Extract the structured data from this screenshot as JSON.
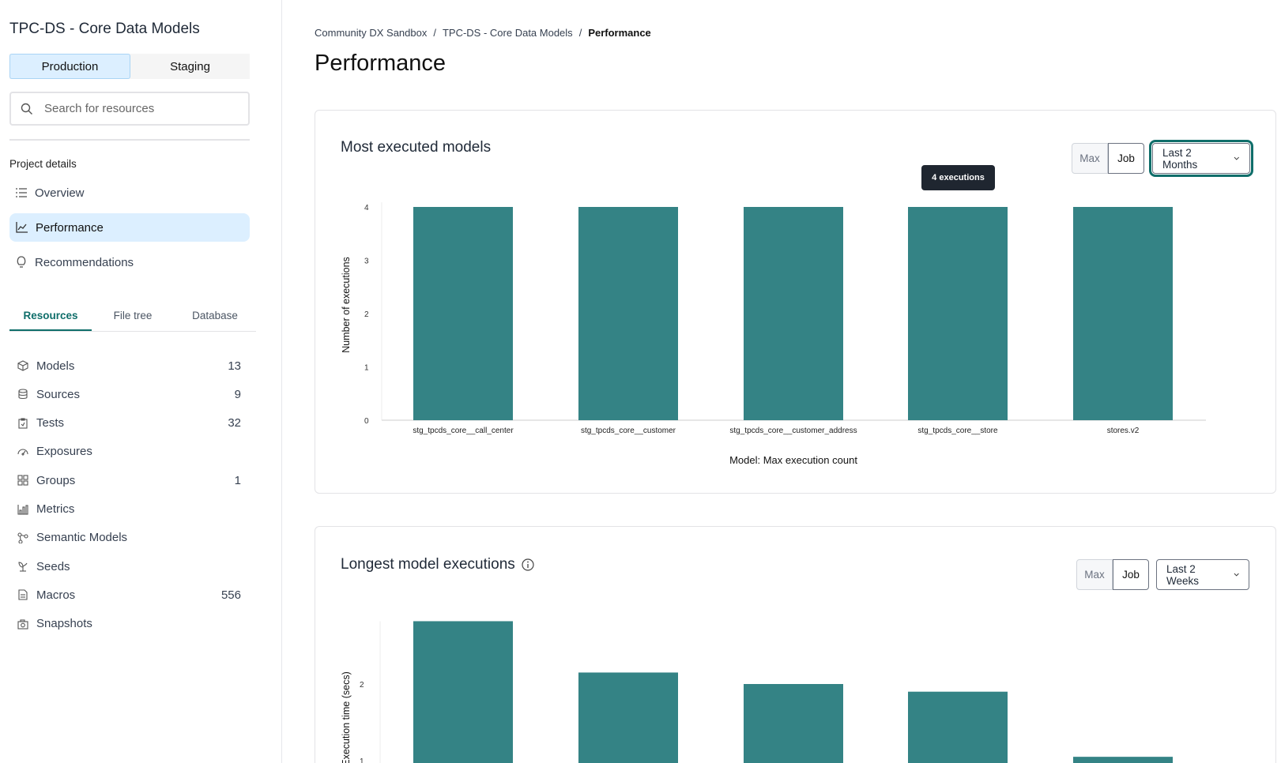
{
  "sidebar": {
    "project_title": "TPC-DS - Core Data Models",
    "env": {
      "production": "Production",
      "staging": "Staging"
    },
    "search_placeholder": "Search for resources",
    "section": "Project details",
    "nav": [
      {
        "label": "Overview",
        "icon": "list-icon"
      },
      {
        "label": "Performance",
        "icon": "line-chart-icon",
        "active": true
      },
      {
        "label": "Recommendations",
        "icon": "lightbulb-icon"
      }
    ],
    "tabs": [
      "Resources",
      "File tree",
      "Database"
    ],
    "resources": [
      {
        "label": "Models",
        "count": "13",
        "icon": "cube-icon"
      },
      {
        "label": "Sources",
        "count": "9",
        "icon": "database-icon"
      },
      {
        "label": "Tests",
        "count": "32",
        "icon": "clipboard-check-icon"
      },
      {
        "label": "Exposures",
        "count": "",
        "icon": "gauge-icon"
      },
      {
        "label": "Groups",
        "count": "1",
        "icon": "grid-icon"
      },
      {
        "label": "Metrics",
        "count": "",
        "icon": "bar-chart-icon"
      },
      {
        "label": "Semantic Models",
        "count": "",
        "icon": "nodes-icon"
      },
      {
        "label": "Seeds",
        "count": "",
        "icon": "sprout-icon"
      },
      {
        "label": "Macros",
        "count": "556",
        "icon": "document-icon"
      },
      {
        "label": "Snapshots",
        "count": "",
        "icon": "camera-icon"
      }
    ]
  },
  "breadcrumb": [
    "Community DX Sandbox",
    "TPC-DS - Core Data Models",
    "Performance"
  ],
  "page_title": "Performance",
  "cards": [
    {
      "title": "Most executed models",
      "max": "Max",
      "job": "Job",
      "range": "Last 2 Months",
      "tooltip": "4 executions"
    },
    {
      "title": "Longest model executions",
      "max": "Max",
      "job": "Job",
      "range": "Last 2 Weeks"
    }
  ],
  "accent": "#0f6e6a",
  "bar_color": "#348385",
  "chart_data": [
    {
      "type": "bar",
      "categories": [
        "stg_tpcds_core__call_center",
        "stg_tpcds_core__customer",
        "stg_tpcds_core__customer_address",
        "stg_tpcds_core__store",
        "stores.v2"
      ],
      "values": [
        4,
        4,
        4,
        4,
        4
      ],
      "xlabel": "Model: Max execution count",
      "ylabel": "Number of executions",
      "ylim": [
        0,
        4
      ],
      "yticks": [
        0,
        1,
        2,
        3,
        4
      ],
      "grid": false
    },
    {
      "type": "bar",
      "values": [
        2.82,
        2.15,
        2.0,
        1.9,
        1.05
      ],
      "ylabel": "Execution time (secs)",
      "yticks": [
        1,
        2
      ],
      "grid": false
    }
  ]
}
